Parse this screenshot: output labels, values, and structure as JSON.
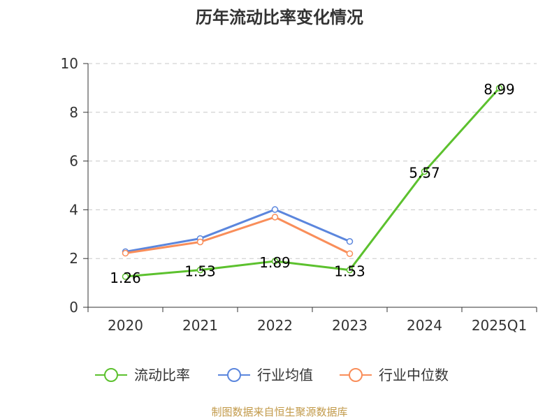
{
  "chart_data": {
    "type": "line",
    "title": "历年流动比率变化情况",
    "categories": [
      "2020",
      "2021",
      "2022",
      "2023",
      "2024",
      "2025Q1"
    ],
    "ylim": [
      0,
      10
    ],
    "yticks": [
      0,
      2,
      4,
      6,
      8,
      10
    ],
    "ytick_labels": [
      "0",
      "2",
      "4",
      "6",
      "8",
      "10"
    ],
    "grid": true,
    "legend_position": "bottom",
    "series": [
      {
        "name": "流动比率",
        "color": "#5cc12e",
        "values": [
          1.26,
          1.53,
          1.89,
          1.53,
          5.57,
          8.99
        ],
        "labels": [
          "1.26",
          "1.53",
          "1.89",
          "1.53",
          "5.57",
          "8.99"
        ]
      },
      {
        "name": "行业均值",
        "color": "#5b86dd",
        "values": [
          2.28,
          2.82,
          4.01,
          2.7,
          null,
          null
        ]
      },
      {
        "name": "行业中位数",
        "color": "#f98e5a",
        "values": [
          2.22,
          2.68,
          3.7,
          2.2,
          null,
          null
        ]
      }
    ]
  },
  "source_text": "制图数据来自恒生聚源数据库"
}
